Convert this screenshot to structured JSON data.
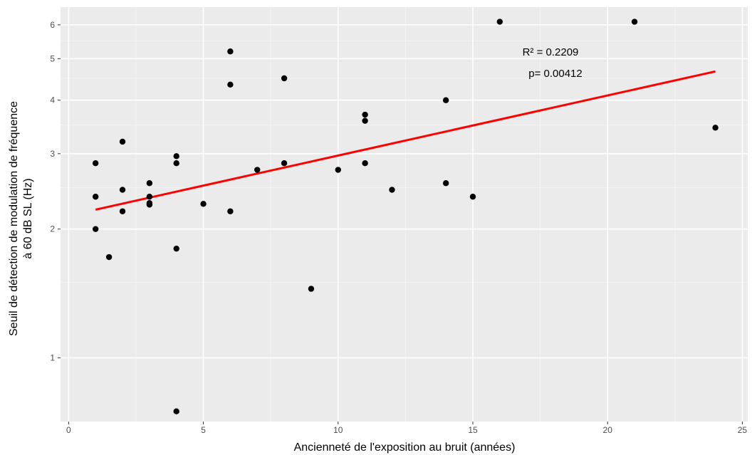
{
  "chart_data": {
    "type": "scatter",
    "title": "",
    "xlabel": "Ancienneté de l'exposition au bruit (années)",
    "ylabel_lines": [
      "Seuil de détection de modulation de fréquence",
      "à 60 dB SL (Hz)"
    ],
    "xlim": [
      -0.3,
      25.2
    ],
    "ylim": [
      0.71,
      6.6
    ],
    "yscale": "log",
    "x_ticks": [
      0,
      5,
      10,
      15,
      20,
      25
    ],
    "x_tick_labels": [
      "0",
      "5",
      "10",
      "15",
      "20",
      "25"
    ],
    "y_ticks": [
      1,
      2,
      3,
      4,
      5,
      6
    ],
    "y_tick_labels": [
      "1",
      "2",
      "3",
      "4",
      "5",
      "6"
    ],
    "y_minor_ticks": [
      1.5,
      2.5,
      3.5,
      4.5,
      5.5
    ],
    "grid": true,
    "background": "#ebebeb",
    "points": [
      {
        "x": 1,
        "y": 2.85
      },
      {
        "x": 1,
        "y": 2.38
      },
      {
        "x": 1,
        "y": 2.0
      },
      {
        "x": 1.5,
        "y": 1.72
      },
      {
        "x": 2,
        "y": 3.2
      },
      {
        "x": 2,
        "y": 2.47
      },
      {
        "x": 2,
        "y": 2.2
      },
      {
        "x": 3,
        "y": 2.56
      },
      {
        "x": 3,
        "y": 2.38
      },
      {
        "x": 3,
        "y": 2.3
      },
      {
        "x": 3,
        "y": 2.28
      },
      {
        "x": 4,
        "y": 2.96
      },
      {
        "x": 4,
        "y": 2.85
      },
      {
        "x": 4,
        "y": 1.8
      },
      {
        "x": 4,
        "y": 0.75
      },
      {
        "x": 5,
        "y": 2.29
      },
      {
        "x": 6,
        "y": 5.2
      },
      {
        "x": 6,
        "y": 4.35
      },
      {
        "x": 6,
        "y": 2.2
      },
      {
        "x": 7,
        "y": 2.75
      },
      {
        "x": 8,
        "y": 4.5
      },
      {
        "x": 8,
        "y": 2.85
      },
      {
        "x": 9,
        "y": 1.45
      },
      {
        "x": 10,
        "y": 2.75
      },
      {
        "x": 11,
        "y": 3.7
      },
      {
        "x": 11,
        "y": 3.58
      },
      {
        "x": 11,
        "y": 2.85
      },
      {
        "x": 12,
        "y": 2.47
      },
      {
        "x": 14,
        "y": 4.0
      },
      {
        "x": 14,
        "y": 2.56
      },
      {
        "x": 15,
        "y": 2.38
      },
      {
        "x": 16,
        "y": 6.1
      },
      {
        "x": 21,
        "y": 6.1
      },
      {
        "x": 24,
        "y": 3.45
      }
    ],
    "point_color": "#000000",
    "fit_line": {
      "x": [
        1,
        24
      ],
      "y": [
        2.22,
        4.67
      ],
      "color": "#ff0000"
    },
    "annotations": [
      "R² = 0.2209",
      "p= 0.00412"
    ]
  }
}
